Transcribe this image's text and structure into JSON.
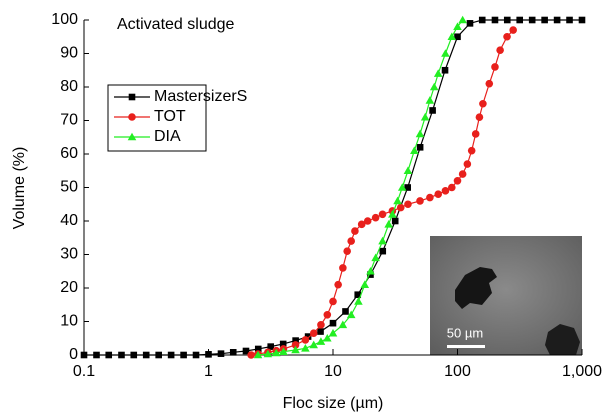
{
  "chart_data": {
    "type": "line",
    "xscale": "log",
    "annotation": "Activated sludge",
    "x_label": "Floc size (µm)",
    "y_label": "Volume (%)",
    "inset_label": "50 µm",
    "xlim": [
      0.1,
      1000
    ],
    "ylim": [
      0,
      100
    ],
    "xticks": [
      0.1,
      1,
      10,
      100,
      {
        "value": 1000,
        "label": "1,000"
      }
    ],
    "yticks": [
      0,
      10,
      20,
      30,
      40,
      50,
      60,
      70,
      80,
      90,
      100
    ],
    "legend": "upper left",
    "series": [
      {
        "name": "MastersizerS",
        "color": "#000000",
        "marker": "square",
        "x": [
          0.1,
          0.126,
          0.158,
          0.2,
          0.251,
          0.316,
          0.398,
          0.501,
          0.631,
          0.794,
          1,
          1.26,
          1.58,
          2,
          2.51,
          3.16,
          3.98,
          5.01,
          6.31,
          7.94,
          10,
          12.6,
          15.8,
          20,
          25.1,
          31.6,
          39.8,
          50.1,
          63.1,
          79.4,
          100,
          126,
          158,
          200,
          251,
          316,
          398,
          501,
          631,
          794,
          1000
        ],
        "values": [
          0,
          0,
          0,
          0,
          0,
          0,
          0,
          0,
          0,
          0,
          0.2,
          0.4,
          0.8,
          1.2,
          1.8,
          2.5,
          3.3,
          4.3,
          5.5,
          7,
          9.5,
          13,
          18,
          24,
          31,
          40,
          50,
          62,
          73,
          85,
          95,
          99,
          100,
          100,
          100,
          100,
          100,
          100,
          100,
          100,
          100
        ]
      },
      {
        "name": "TOT",
        "color": "#e8201c",
        "marker": "circle",
        "x": [
          2.2,
          2.5,
          3,
          3.5,
          4,
          5,
          6,
          7,
          8,
          9,
          10,
          11,
          12,
          13,
          14,
          15,
          17,
          19,
          22,
          25,
          30,
          35,
          40,
          50,
          60,
          70,
          80,
          90,
          100,
          110,
          120,
          130,
          140,
          150,
          160,
          180,
          200,
          220,
          250,
          280
        ],
        "values": [
          0,
          0.3,
          0.8,
          1.3,
          1.8,
          3,
          4.5,
          6.5,
          9,
          12,
          16,
          21,
          26,
          31,
          34,
          37,
          39,
          40,
          41,
          42,
          43,
          44,
          45,
          46,
          47,
          48,
          49,
          50,
          52,
          54,
          57,
          61,
          66,
          71,
          75,
          81,
          86,
          91,
          95,
          97
        ]
      },
      {
        "name": "DIA",
        "color": "#22ee22",
        "marker": "triangle",
        "x": [
          2.5,
          3,
          3.5,
          4,
          5,
          6,
          7,
          8,
          9,
          10,
          12,
          14,
          16,
          18,
          20,
          22,
          25,
          28,
          30,
          33,
          36,
          40,
          45,
          50,
          55,
          60,
          65,
          70,
          80,
          90,
          100,
          110
        ],
        "values": [
          0,
          0.3,
          0.6,
          1,
          1.5,
          2,
          3,
          4,
          5,
          6.5,
          9,
          12,
          16,
          21,
          25,
          29,
          34,
          39,
          42,
          46,
          50,
          55,
          61,
          66,
          71,
          76,
          80,
          84,
          90,
          95,
          98,
          100
        ]
      }
    ]
  }
}
